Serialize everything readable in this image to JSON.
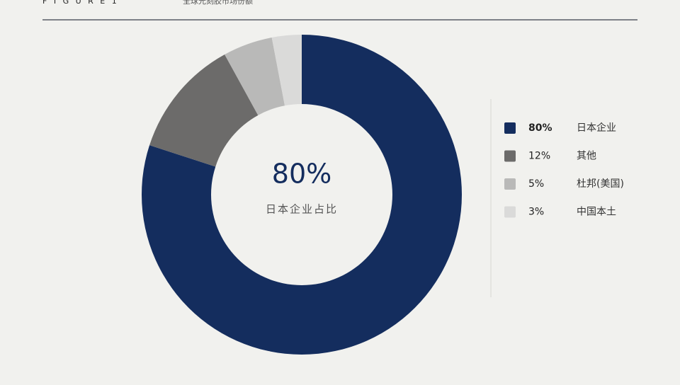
{
  "figure_label": "F I G U R E  1",
  "chart_data": {
    "type": "donut",
    "title": "全球光刻胶市场份额",
    "categories": [
      "日本企业",
      "其他",
      "杜邦(美国)",
      "中国本土"
    ],
    "values": [
      80,
      12,
      5,
      3
    ],
    "value_labels": [
      "80%",
      "12%",
      "5%",
      "3%"
    ],
    "colors": [
      "#142d5e",
      "#6c6b6a",
      "#b9b9b8",
      "#dadad9"
    ],
    "center_label": "日本企业占比",
    "legend": "right"
  }
}
